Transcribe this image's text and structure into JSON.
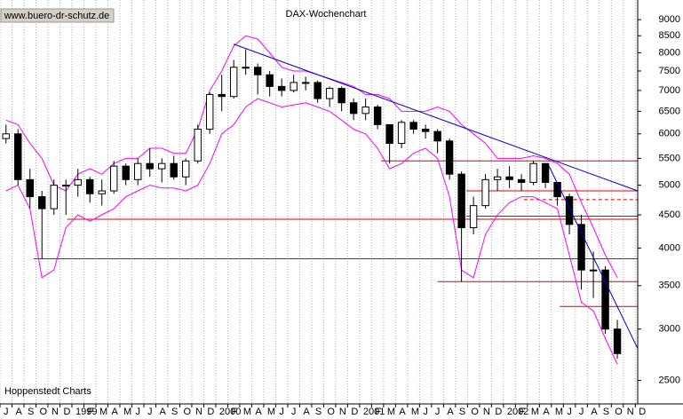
{
  "chart_data": {
    "type": "candlestick",
    "title": "DAX-Wochenchart",
    "source": "www.buero-dr-schutz.de",
    "credit": "Hoppenstedt Charts",
    "log_y": true,
    "ylim": [
      2300,
      9650
    ],
    "yticks": [
      2500,
      3000,
      3500,
      4000,
      4500,
      5000,
      5500,
      6000,
      6500,
      7000,
      7500,
      8000,
      8500,
      9000
    ],
    "xlim": [
      0,
      53.2
    ],
    "xticks": [
      {
        "value": 0,
        "label": "J"
      },
      {
        "value": 1,
        "label": "A"
      },
      {
        "value": 2,
        "label": "S"
      },
      {
        "value": 3,
        "label": "O"
      },
      {
        "value": 4,
        "label": "N"
      },
      {
        "value": 5,
        "label": "D"
      },
      {
        "value": 6,
        "label": "1999"
      },
      {
        "value": 7,
        "label": "F"
      },
      {
        "value": 8,
        "label": "M"
      },
      {
        "value": 9,
        "label": "A"
      },
      {
        "value": 10,
        "label": "M"
      },
      {
        "value": 11,
        "label": "J"
      },
      {
        "value": 12,
        "label": "J"
      },
      {
        "value": 13,
        "label": "A"
      },
      {
        "value": 14,
        "label": "S"
      },
      {
        "value": 15,
        "label": "O"
      },
      {
        "value": 16,
        "label": "N"
      },
      {
        "value": 17,
        "label": "D"
      },
      {
        "value": 18,
        "label": "2000"
      },
      {
        "value": 19,
        "label": "F"
      },
      {
        "value": 20,
        "label": "M"
      },
      {
        "value": 21,
        "label": "A"
      },
      {
        "value": 22,
        "label": "M"
      },
      {
        "value": 23,
        "label": "J"
      },
      {
        "value": 24,
        "label": "J"
      },
      {
        "value": 25,
        "label": "A"
      },
      {
        "value": 26,
        "label": "S"
      },
      {
        "value": 27,
        "label": "O"
      },
      {
        "value": 28,
        "label": "N"
      },
      {
        "value": 29,
        "label": "D"
      },
      {
        "value": 30,
        "label": "2001"
      },
      {
        "value": 31,
        "label": "F"
      },
      {
        "value": 32,
        "label": "M"
      },
      {
        "value": 33,
        "label": "A"
      },
      {
        "value": 34,
        "label": "M"
      },
      {
        "value": 35,
        "label": "J"
      },
      {
        "value": 36,
        "label": "J"
      },
      {
        "value": 37,
        "label": "A"
      },
      {
        "value": 38,
        "label": "S"
      },
      {
        "value": 39,
        "label": "O"
      },
      {
        "value": 40,
        "label": "N"
      },
      {
        "value": 41,
        "label": "D"
      },
      {
        "value": 42,
        "label": "2002"
      },
      {
        "value": 43,
        "label": "F"
      },
      {
        "value": 44,
        "label": "M"
      },
      {
        "value": 45,
        "label": "A"
      },
      {
        "value": 46,
        "label": "M"
      },
      {
        "value": 47,
        "label": "J"
      },
      {
        "value": 48,
        "label": "J"
      },
      {
        "value": 49,
        "label": "A"
      },
      {
        "value": 50,
        "label": "S"
      },
      {
        "value": 51,
        "label": "O"
      },
      {
        "value": 52,
        "label": "N"
      },
      {
        "value": 53,
        "label": "D"
      }
    ],
    "grid": true,
    "x": [
      0.5,
      1.5,
      2.5,
      3.5,
      4.5,
      5.5,
      6.5,
      7.5,
      8.5,
      9.5,
      10.5,
      11.5,
      12.5,
      13.5,
      14.5,
      15.5,
      16.5,
      17.5,
      18.5,
      19.5,
      20.5,
      21.5,
      22.5,
      23.5,
      24.5,
      25.5,
      26.5,
      27.5,
      28.5,
      29.5,
      30.5,
      31.5,
      32.5,
      33.5,
      34.5,
      35.5,
      36.5,
      37.5,
      38.5,
      39.5,
      40.5,
      41.5,
      42.5,
      43.5,
      44.5,
      45.5,
      46.5,
      47.5,
      48.5,
      49.5,
      50.5,
      51.5
    ],
    "open": [
      5900,
      6000,
      5100,
      4800,
      4600,
      5000,
      5000,
      5100,
      4850,
      4900,
      5350,
      5100,
      5400,
      5300,
      5400,
      5150,
      5450,
      6100,
      6900,
      6850,
      7600,
      7600,
      7400,
      7100,
      7000,
      7200,
      7200,
      6800,
      7050,
      6700,
      6450,
      6600,
      6200,
      5800,
      6250,
      6100,
      6050,
      5850,
      5200,
      4300,
      4650,
      5100,
      5150,
      5100,
      5050,
      5400,
      5050,
      4800,
      4350,
      3700,
      3700,
      3000
    ],
    "high": [
      6200,
      6100,
      5300,
      4900,
      5100,
      5100,
      5300,
      5150,
      5100,
      5450,
      5400,
      5500,
      5700,
      5500,
      5550,
      5500,
      6200,
      6950,
      7400,
      7800,
      8100,
      7700,
      7500,
      7300,
      7400,
      7350,
      7250,
      7100,
      7100,
      6800,
      6800,
      6650,
      6200,
      6300,
      6300,
      6200,
      6100,
      5900,
      5250,
      4800,
      5200,
      5300,
      5350,
      5200,
      5450,
      5400,
      5050,
      4850,
      4500,
      3950,
      3750,
      3100
    ],
    "low": [
      5800,
      5000,
      4600,
      3850,
      4500,
      4500,
      4800,
      4700,
      4650,
      4850,
      5000,
      5000,
      5150,
      5050,
      5100,
      5000,
      5400,
      6000,
      6500,
      6800,
      7400,
      6900,
      6850,
      6850,
      6950,
      7000,
      6700,
      6600,
      6500,
      6300,
      6300,
      6100,
      5400,
      5700,
      6000,
      5900,
      5600,
      5100,
      3550,
      4200,
      4600,
      4900,
      4950,
      4900,
      5000,
      4950,
      4650,
      4200,
      3450,
      3350,
      2950,
      2700
    ],
    "close": [
      6000,
      5100,
      4800,
      4600,
      5000,
      5000,
      5100,
      4850,
      4900,
      5350,
      5100,
      5400,
      5300,
      5400,
      5150,
      5450,
      6100,
      6900,
      6850,
      7600,
      7600,
      7400,
      7100,
      7000,
      7200,
      7200,
      6800,
      7050,
      6700,
      6450,
      6600,
      6200,
      5800,
      6250,
      6100,
      6050,
      5850,
      5200,
      4300,
      4650,
      5100,
      5150,
      5100,
      5050,
      5400,
      5050,
      4800,
      4350,
      3700,
      3700,
      3000,
      2750
    ],
    "up_color": "#ffffff",
    "down_color": "#000000",
    "bands": [
      {
        "color": "#ff00ff",
        "values": [
          6300,
          6200,
          5800,
          5500,
          5000,
          4900,
          5200,
          5300,
          5200,
          5400,
          5500,
          5500,
          5700,
          5700,
          5600,
          5600,
          6100,
          7000,
          7500,
          8200,
          8500,
          8400,
          8000,
          7600,
          7500,
          7500,
          7400,
          7300,
          7200,
          7100,
          6900,
          6900,
          6800,
          6500,
          6500,
          6500,
          6600,
          6500,
          6200,
          6000,
          5800,
          5500,
          5500,
          5500,
          5550,
          5500,
          5400,
          5200,
          4700,
          4300,
          3900,
          3600
        ]
      },
      {
        "color": "#ff00ff",
        "values": [
          4900,
          5000,
          4600,
          3600,
          3700,
          4300,
          4500,
          4400,
          4500,
          4600,
          4800,
          4900,
          5000,
          4950,
          4950,
          4900,
          5000,
          5400,
          6000,
          6200,
          6600,
          6800,
          6700,
          6600,
          6650,
          6700,
          6600,
          6500,
          6300,
          6100,
          6000,
          5700,
          5300,
          5400,
          5600,
          5700,
          5500,
          4800,
          3700,
          3600,
          4200,
          4500,
          4700,
          4800,
          4800,
          4700,
          4600,
          3900,
          3300,
          3200,
          2900,
          2650
        ]
      }
    ],
    "trend_lines": [
      {
        "color": "#0000cc",
        "x": [
          19.5,
          53.2
        ],
        "values": [
          8250,
          4900
        ]
      },
      {
        "color": "#0000cc",
        "x": [
          45.8,
          53.2
        ],
        "values": [
          5350,
          2800
        ]
      }
    ],
    "support_lines": [
      {
        "color": "#dd0000",
        "x": [
          31.8,
          53.2
        ],
        "value": 5450,
        "dashed": false
      },
      {
        "color": "#dd0000",
        "x": [
          38.9,
          53.2
        ],
        "value": 4900,
        "dashed": false
      },
      {
        "color": "#dd0000",
        "x": [
          43.7,
          53.2
        ],
        "value": 4750,
        "dashed": true
      },
      {
        "color": "#dd0000",
        "x": [
          38.9,
          53.2
        ],
        "value": 4480,
        "dashed": false
      },
      {
        "color": "#dd0000",
        "x": [
          5.6,
          53.2
        ],
        "value": 4430,
        "dashed": false
      },
      {
        "color": "#dd0000",
        "x": [
          2.8,
          53.2
        ],
        "value": 3850,
        "dashed": false
      },
      {
        "color": "#dd0000",
        "x": [
          36.5,
          53.2
        ],
        "value": 3550,
        "dashed": false
      },
      {
        "color": "#dd0000",
        "x": [
          46.7,
          53.2
        ],
        "value": 3250,
        "dashed": false
      }
    ]
  }
}
